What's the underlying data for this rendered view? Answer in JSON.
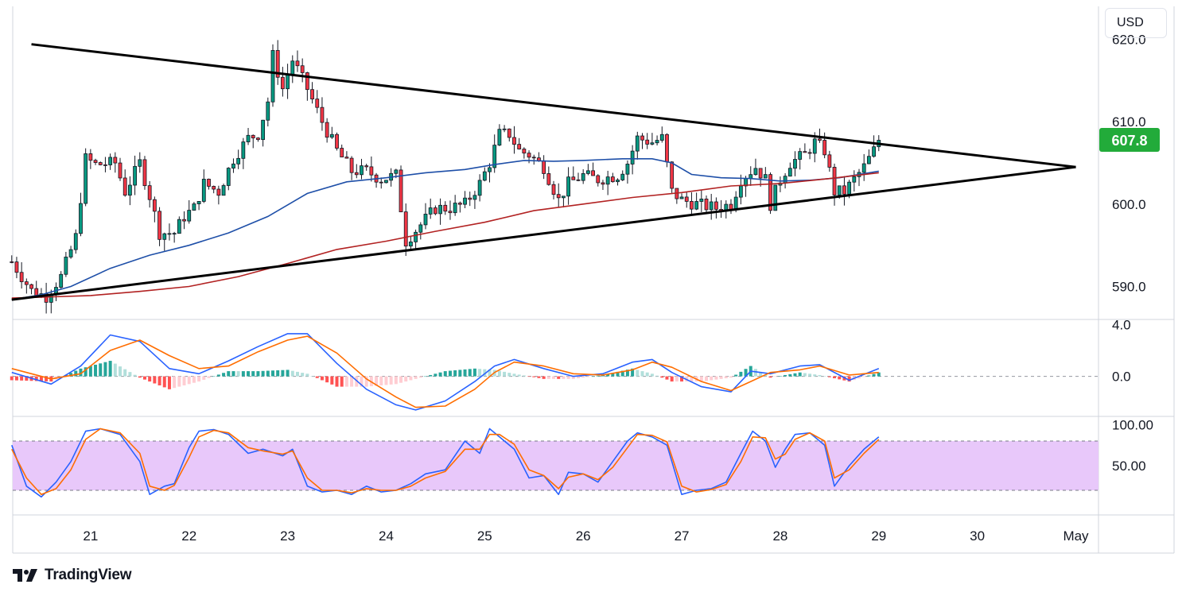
{
  "header": {
    "currency": "USD"
  },
  "brand": {
    "name": "TradingView"
  },
  "colors": {
    "bull": "#089981",
    "bear": "#f23645",
    "ma_fast": "#1e4fa8",
    "ma_slow": "#b22222",
    "macd": "#2962ff",
    "signal": "#ff6d00",
    "rsi_band": "#e8c8fa",
    "last_price_bg": "#22ab3a"
  },
  "chart_data": [
    {
      "type": "candlestick",
      "panel": "price",
      "last_price": "607.8",
      "y_ticks": [
        "620.0",
        "610.0",
        "600.0",
        "590.0"
      ],
      "y_tick_values": [
        620,
        610,
        600,
        590
      ],
      "ylim": [
        586,
        624
      ],
      "x_tick_labels": [
        "21",
        "22",
        "23",
        "24",
        "25",
        "26",
        "27",
        "28",
        "29",
        "30",
        "May"
      ],
      "x_tick_values": [
        21,
        22,
        23,
        24,
        25,
        26,
        27,
        28,
        29,
        30,
        31
      ],
      "xlim": [
        20.21,
        31.23
      ],
      "trendlines": [
        {
          "name": "upper",
          "x": [
            20.4,
            31.0
          ],
          "y": [
            619.4,
            604.5
          ]
        },
        {
          "name": "lower",
          "x": [
            20.2,
            31.0
          ],
          "y": [
            588.4,
            604.5
          ]
        }
      ],
      "candle_anchors": [
        [
          20.2,
          593.0
        ],
        [
          20.4,
          589.5
        ],
        [
          20.55,
          588.8
        ],
        [
          20.7,
          591.2
        ],
        [
          20.85,
          596.0
        ],
        [
          20.95,
          605.5
        ],
        [
          21.05,
          604.8
        ],
        [
          21.25,
          605.0
        ],
        [
          21.35,
          601.5
        ],
        [
          21.5,
          605.0
        ],
        [
          21.6,
          601.0
        ],
        [
          21.7,
          596.5
        ],
        [
          21.85,
          596.5
        ],
        [
          21.95,
          598.5
        ],
        [
          22.05,
          599.5
        ],
        [
          22.15,
          602.5
        ],
        [
          22.3,
          601.5
        ],
        [
          22.45,
          605.5
        ],
        [
          22.6,
          608.0
        ],
        [
          22.7,
          608.5
        ],
        [
          22.8,
          612.5
        ],
        [
          22.85,
          618.0
        ],
        [
          22.95,
          614.0
        ],
        [
          23.05,
          617.5
        ],
        [
          23.2,
          614.0
        ],
        [
          23.35,
          610.0
        ],
        [
          23.5,
          606.5
        ],
        [
          23.65,
          604.0
        ],
        [
          23.8,
          604.0
        ],
        [
          23.95,
          603.0
        ],
        [
          24.1,
          603.5
        ],
        [
          24.2,
          595.5
        ],
        [
          24.35,
          597.5
        ],
        [
          24.5,
          599.5
        ],
        [
          24.65,
          599.5
        ],
        [
          24.8,
          600.0
        ],
        [
          24.95,
          602.5
        ],
        [
          25.05,
          605.0
        ],
        [
          25.15,
          608.5
        ],
        [
          25.25,
          608.5
        ],
        [
          25.35,
          606.5
        ],
        [
          25.45,
          606.0
        ],
        [
          25.6,
          604.5
        ],
        [
          25.75,
          600.5
        ],
        [
          25.85,
          602.5
        ],
        [
          26.0,
          603.5
        ],
        [
          26.15,
          603.0
        ],
        [
          26.35,
          603.5
        ],
        [
          26.45,
          605.0
        ],
        [
          26.55,
          608.0
        ],
        [
          26.7,
          607.5
        ],
        [
          26.8,
          608.0
        ],
        [
          26.9,
          601.5
        ],
        [
          27.0,
          600.5
        ],
        [
          27.15,
          600.0
        ],
        [
          27.35,
          599.5
        ],
        [
          27.5,
          600.0
        ],
        [
          27.6,
          603.0
        ],
        [
          27.75,
          604.5
        ],
        [
          27.85,
          603.0
        ],
        [
          27.9,
          600.0
        ],
        [
          28.0,
          603.0
        ],
        [
          28.1,
          605.0
        ],
        [
          28.25,
          606.0
        ],
        [
          28.35,
          607.5
        ],
        [
          28.45,
          606.5
        ],
        [
          28.55,
          601.5
        ],
        [
          28.65,
          601.5
        ],
        [
          28.75,
          603.0
        ],
        [
          28.85,
          604.5
        ],
        [
          28.95,
          606.5
        ],
        [
          29.0,
          607.8
        ]
      ],
      "overlays": [
        {
          "name": "MA fast",
          "color": "#1e4fa8",
          "x": [
            20.2,
            20.5,
            20.8,
            21.2,
            21.6,
            22.0,
            22.4,
            22.8,
            23.2,
            23.6,
            24.0,
            24.4,
            24.8,
            25.1,
            25.4,
            25.7,
            26.0,
            26.4,
            26.7,
            26.9,
            27.1,
            27.4,
            27.7,
            28.0,
            28.3,
            28.6,
            29.0
          ],
          "y": [
            588.4,
            589.0,
            590.0,
            592.2,
            593.8,
            595.0,
            596.5,
            598.5,
            601.3,
            602.7,
            603.2,
            603.8,
            604.2,
            604.8,
            605.3,
            605.2,
            605.3,
            605.5,
            605.5,
            605.0,
            603.6,
            603.2,
            603.1,
            602.8,
            602.9,
            603.2,
            604.0
          ]
        },
        {
          "name": "MA slow",
          "color": "#b22222",
          "x": [
            20.2,
            20.5,
            21.0,
            21.5,
            22.0,
            22.5,
            23.0,
            23.5,
            24.0,
            24.5,
            25.0,
            25.5,
            26.0,
            26.5,
            27.0,
            27.5,
            28.0,
            28.5,
            29.0
          ],
          "y": [
            588.6,
            588.7,
            588.9,
            589.4,
            590.0,
            591.2,
            592.8,
            594.5,
            595.5,
            596.7,
            597.8,
            599.2,
            600.0,
            600.8,
            601.4,
            602.2,
            602.5,
            603.1,
            603.8
          ]
        }
      ]
    },
    {
      "type": "line",
      "panel": "macd",
      "y_ticks": [
        "4.0",
        "0.0"
      ],
      "y_tick_values": [
        4.0,
        0.0
      ],
      "ylim": [
        -3.1,
        4.4
      ],
      "series": [
        {
          "name": "MACD",
          "x": [
            20.2,
            20.6,
            20.9,
            21.2,
            21.5,
            21.8,
            22.1,
            22.4,
            22.7,
            23.0,
            23.2,
            23.5,
            23.8,
            24.1,
            24.3,
            24.6,
            24.9,
            25.1,
            25.3,
            25.6,
            25.9,
            26.2,
            26.5,
            26.7,
            26.9,
            27.2,
            27.5,
            27.7,
            27.9,
            28.2,
            28.4,
            28.7,
            29.0
          ],
          "y": [
            0.3,
            -0.6,
            0.8,
            3.2,
            2.7,
            0.6,
            0.2,
            1.2,
            2.3,
            3.3,
            3.3,
            1.0,
            -1.0,
            -2.2,
            -2.6,
            -1.9,
            -0.4,
            0.8,
            1.3,
            0.6,
            0.0,
            0.2,
            1.1,
            1.3,
            0.3,
            -0.8,
            -1.2,
            0.4,
            0.2,
            0.8,
            0.9,
            -0.3,
            0.6
          ]
        },
        {
          "name": "Signal",
          "x": [
            20.2,
            20.6,
            20.9,
            21.2,
            21.5,
            21.8,
            22.1,
            22.4,
            22.7,
            23.0,
            23.2,
            23.5,
            23.8,
            24.1,
            24.3,
            24.6,
            24.9,
            25.1,
            25.3,
            25.6,
            25.9,
            26.2,
            26.5,
            26.7,
            26.9,
            27.2,
            27.5,
            27.7,
            27.9,
            28.2,
            28.4,
            28.7,
            29.0
          ],
          "y": [
            0.6,
            -0.2,
            0.2,
            2.0,
            2.8,
            1.6,
            0.6,
            0.8,
            1.9,
            2.8,
            3.1,
            1.8,
            -0.2,
            -1.6,
            -2.4,
            -2.3,
            -1.0,
            0.3,
            1.1,
            0.8,
            0.2,
            0.1,
            0.5,
            1.1,
            0.7,
            -0.4,
            -1.1,
            -0.4,
            0.3,
            0.5,
            0.8,
            0.1,
            0.3
          ]
        }
      ]
    },
    {
      "type": "line",
      "panel": "stochastic",
      "y_ticks": [
        "100.00",
        "50.00"
      ],
      "y_tick_values": [
        100,
        50
      ],
      "ylim": [
        -10,
        110
      ],
      "band": [
        20,
        80
      ],
      "series": [
        {
          "name": "%K",
          "x": [
            20.2,
            20.35,
            20.5,
            20.65,
            20.8,
            20.95,
            21.1,
            21.3,
            21.5,
            21.6,
            21.75,
            21.85,
            22.0,
            22.1,
            22.25,
            22.4,
            22.6,
            22.75,
            22.95,
            23.05,
            23.2,
            23.35,
            23.5,
            23.65,
            23.8,
            23.95,
            24.1,
            24.25,
            24.4,
            24.6,
            24.8,
            24.95,
            25.05,
            25.15,
            25.3,
            25.45,
            25.6,
            25.75,
            25.85,
            26.0,
            26.15,
            26.3,
            26.45,
            26.55,
            26.7,
            26.85,
            27.0,
            27.15,
            27.3,
            27.45,
            27.6,
            27.72,
            27.85,
            27.95,
            28.05,
            28.15,
            28.3,
            28.45,
            28.55,
            28.7,
            28.85,
            29.0
          ],
          "y": [
            75,
            25,
            12,
            30,
            55,
            92,
            95,
            88,
            55,
            15,
            25,
            28,
            72,
            92,
            94,
            88,
            65,
            70,
            62,
            70,
            25,
            18,
            20,
            15,
            25,
            18,
            20,
            28,
            40,
            45,
            80,
            65,
            95,
            85,
            70,
            35,
            38,
            15,
            42,
            40,
            30,
            55,
            80,
            90,
            85,
            75,
            15,
            20,
            22,
            30,
            65,
            92,
            80,
            48,
            70,
            88,
            90,
            75,
            25,
            50,
            70,
            85
          ]
        },
        {
          "name": "%D",
          "x": [
            20.2,
            20.35,
            20.5,
            20.65,
            20.8,
            20.95,
            21.1,
            21.3,
            21.5,
            21.6,
            21.75,
            21.85,
            22.0,
            22.1,
            22.25,
            22.4,
            22.6,
            22.75,
            22.95,
            23.05,
            23.2,
            23.35,
            23.5,
            23.65,
            23.8,
            23.95,
            24.1,
            24.25,
            24.4,
            24.6,
            24.8,
            24.95,
            25.05,
            25.15,
            25.3,
            25.45,
            25.6,
            25.75,
            25.85,
            26.0,
            26.15,
            26.3,
            26.45,
            26.55,
            26.7,
            26.85,
            27.0,
            27.15,
            27.3,
            27.45,
            27.6,
            27.72,
            27.85,
            27.95,
            28.05,
            28.15,
            28.3,
            28.45,
            28.55,
            28.7,
            28.85,
            29.0
          ],
          "y": [
            70,
            35,
            15,
            22,
            45,
            82,
            95,
            90,
            65,
            25,
            20,
            26,
            60,
            85,
            93,
            90,
            72,
            68,
            64,
            68,
            35,
            20,
            20,
            17,
            22,
            20,
            20,
            25,
            35,
            43,
            70,
            70,
            88,
            88,
            76,
            45,
            38,
            22,
            36,
            40,
            33,
            48,
            72,
            88,
            87,
            79,
            25,
            18,
            21,
            27,
            55,
            85,
            84,
            58,
            64,
            82,
            90,
            80,
            35,
            45,
            65,
            82
          ]
        }
      ]
    }
  ]
}
